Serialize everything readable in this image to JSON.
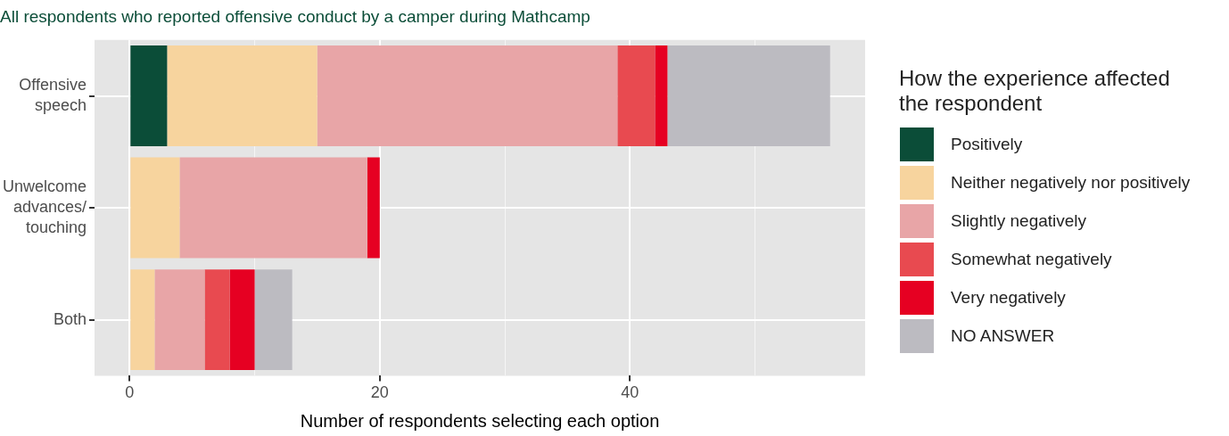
{
  "chart_data": {
    "type": "bar",
    "orientation": "horizontal",
    "stacked": true,
    "title": "All respondents who reported offensive conduct by a camper during Mathcamp",
    "xlabel": "Number of respondents selecting each option",
    "legend_title": "How the experience affected the respondent",
    "legend": "right",
    "grid": true,
    "categories": [
      "Offensive speech",
      "Unwelcome advances/ touching",
      "Both"
    ],
    "series": [
      {
        "name": "Positively",
        "color": "#0b4d38",
        "values": [
          3,
          0,
          0
        ]
      },
      {
        "name": "Neither negatively nor positively",
        "color": "#f7d49e",
        "values": [
          12,
          4,
          2
        ]
      },
      {
        "name": "Slightly negatively",
        "color": "#e8a5a7",
        "values": [
          24,
          15,
          4
        ]
      },
      {
        "name": "Somewhat negatively",
        "color": "#e84a50",
        "values": [
          3,
          0,
          2
        ]
      },
      {
        "name": "Very negatively",
        "color": "#e60022",
        "values": [
          1,
          1,
          2
        ]
      },
      {
        "name": "NO ANSWER",
        "color": "#bcbbc1",
        "values": [
          13,
          0,
          3
        ]
      }
    ],
    "xlim": [
      -2.8,
      58.8
    ],
    "xticks": [
      0,
      {
        "value": 10,
        "label": null
      },
      20,
      {
        "value": 30,
        "label": null
      },
      40,
      {
        "value": 50,
        "label": null
      }
    ]
  }
}
